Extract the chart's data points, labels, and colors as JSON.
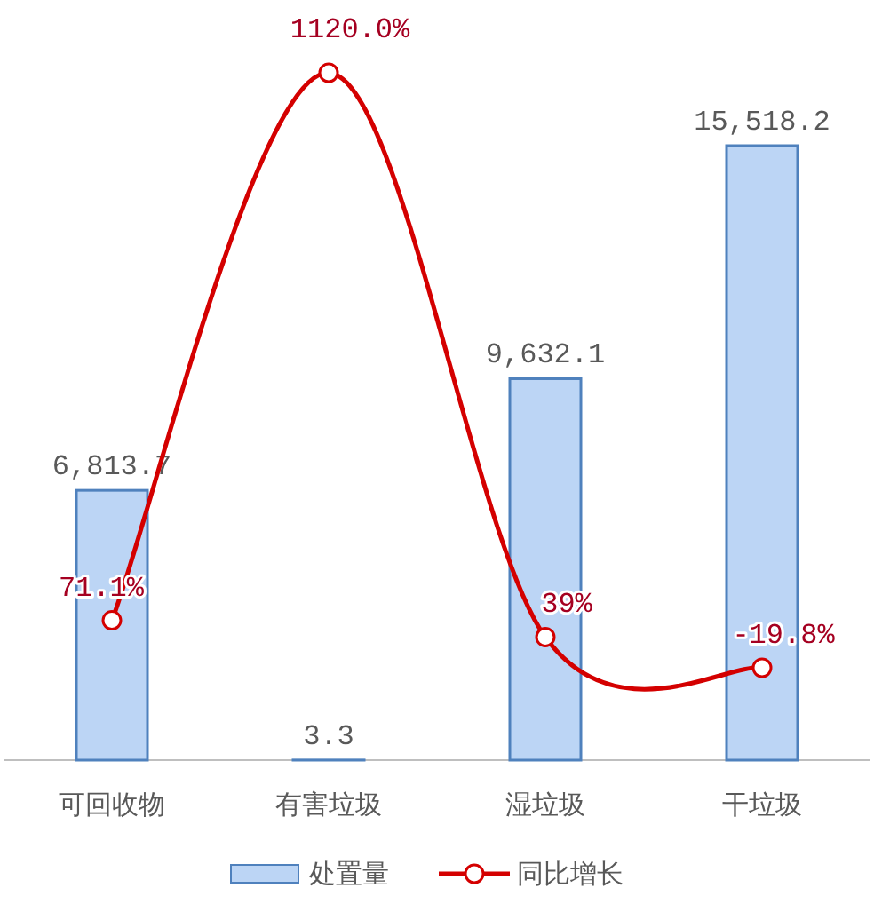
{
  "chart_data": {
    "type": "bar",
    "categories": [
      "可回收物",
      "有害垃圾",
      "湿垃圾",
      "干垃圾"
    ],
    "tick_labels": "x",
    "legend": "bottom",
    "series": [
      {
        "name": "处置量",
        "color": "#bcd5f5",
        "values": [
          6813.7,
          3.3,
          9632.1,
          15518.2
        ],
        "value_labels": [
          "6,813.7",
          "3.3",
          "9,632.1",
          "15,518.2"
        ]
      },
      {
        "name": "同比增长",
        "type": "line",
        "axis": "y2",
        "color": "#d40000",
        "marker": "circle",
        "line_style": "solid",
        "values": [
          71.1,
          1120.0,
          39,
          -19.8
        ],
        "value_labels": [
          "71.1%",
          "1120.0%",
          "39%",
          "-19.8%"
        ]
      }
    ]
  }
}
